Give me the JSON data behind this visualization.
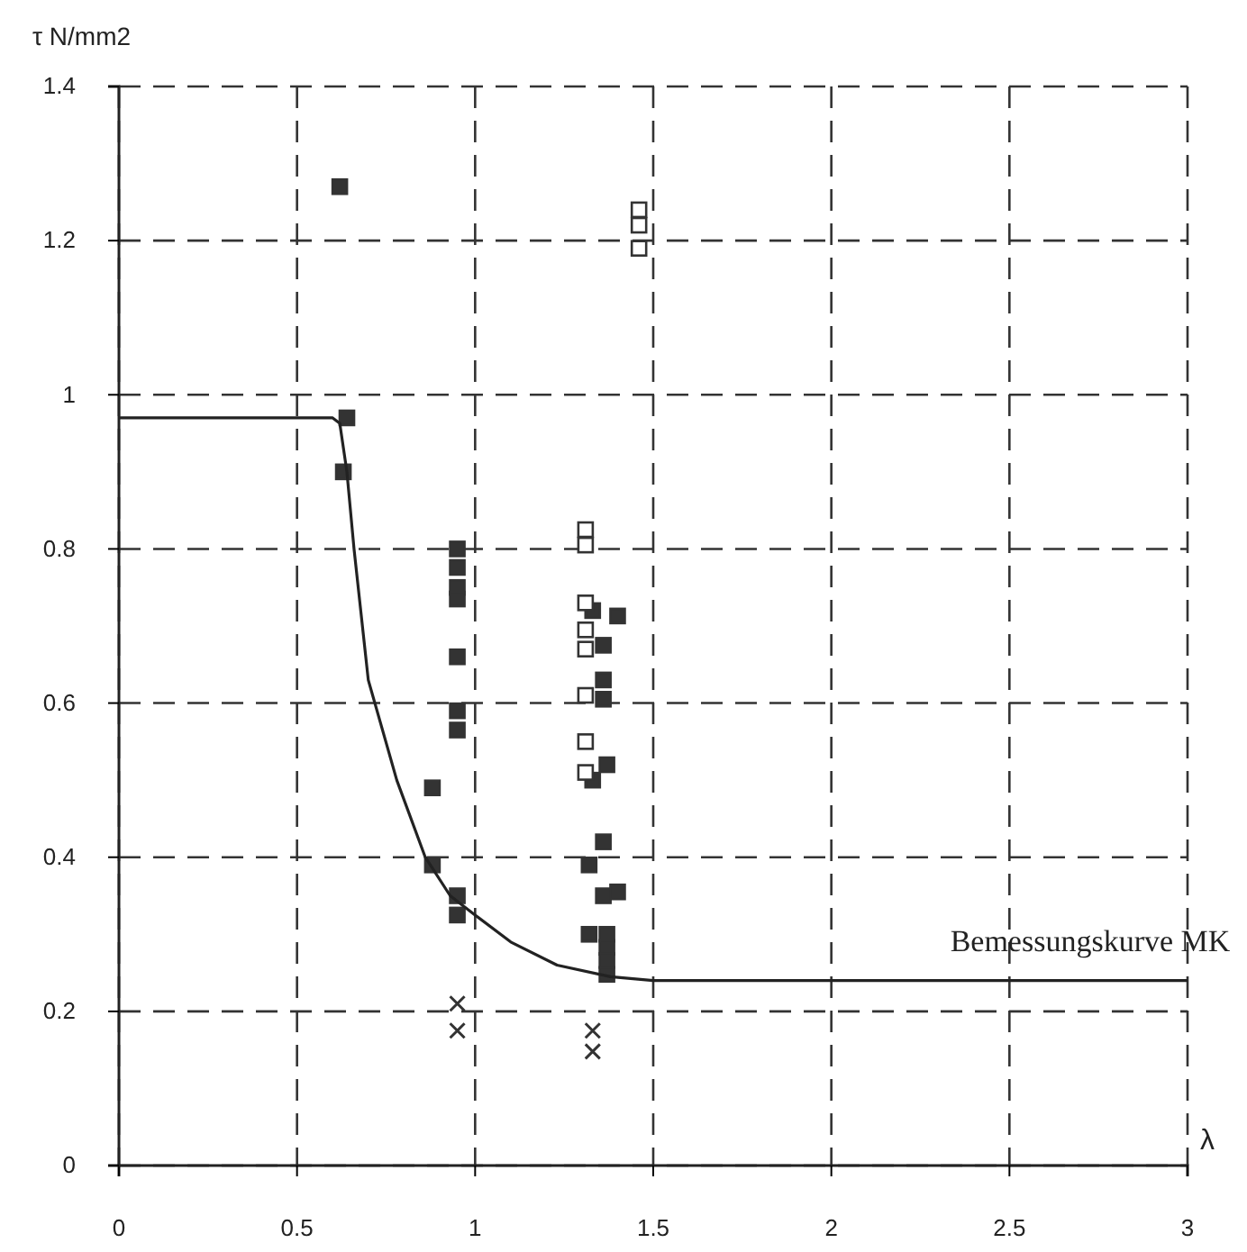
{
  "chart_data": {
    "type": "scatter",
    "ylabel": "τ N/mm2",
    "xlabel": "λ",
    "xlim": [
      0,
      3
    ],
    "ylim": [
      0,
      1.4
    ],
    "xticks": [
      0,
      0.5,
      1,
      1.5,
      2,
      2.5,
      3
    ],
    "yticks": [
      0,
      0.2,
      0.4,
      0.6,
      0.8,
      1,
      1.2,
      1.4
    ],
    "grid": true,
    "annotations": [
      "Bemessungskurve MK"
    ],
    "series": [
      {
        "marker": "square",
        "color": "#333333",
        "x": [
          0.62,
          0.64,
          0.63,
          0.95,
          0.95,
          0.95,
          0.95,
          0.95,
          0.95,
          0.95,
          0.88,
          0.88,
          0.95,
          0.95,
          1.33,
          1.4,
          1.36,
          1.36,
          1.36,
          1.37,
          1.33,
          1.36,
          1.32,
          1.36,
          1.4,
          1.32,
          1.37,
          1.37,
          1.37,
          1.37
        ],
        "values": [
          1.27,
          0.97,
          0.9,
          0.8,
          0.776,
          0.75,
          0.735,
          0.66,
          0.59,
          0.565,
          0.49,
          0.39,
          0.35,
          0.325,
          0.72,
          0.713,
          0.675,
          0.63,
          0.605,
          0.52,
          0.5,
          0.42,
          0.39,
          0.35,
          0.355,
          0.3,
          0.3,
          0.283,
          0.266,
          0.248
        ]
      },
      {
        "marker": "square",
        "color": "#ffffff",
        "x": [
          1.46,
          1.46,
          1.46,
          1.31,
          1.31,
          1.31,
          1.31,
          1.31,
          1.31,
          1.31,
          1.31
        ],
        "values": [
          1.24,
          1.22,
          1.19,
          0.825,
          0.805,
          0.73,
          0.695,
          0.67,
          0.61,
          0.55,
          0.51
        ]
      },
      {
        "marker": "cross",
        "color": "#333333",
        "x": [
          0.95,
          0.95,
          1.33,
          1.33
        ],
        "values": [
          0.21,
          0.175,
          0.175,
          0.148
        ]
      },
      {
        "type": "line",
        "marker": "none",
        "line_style": "solid",
        "color": "#222222",
        "x": [
          0,
          0.6,
          0.62,
          0.64,
          0.66,
          0.7,
          0.78,
          0.86,
          0.93,
          1.0,
          1.1,
          1.23,
          1.38,
          1.5,
          3
        ],
        "values": [
          0.97,
          0.97,
          0.963,
          0.9,
          0.8,
          0.63,
          0.5,
          0.4,
          0.35,
          0.325,
          0.29,
          0.26,
          0.245,
          0.24,
          0.24
        ]
      }
    ]
  }
}
